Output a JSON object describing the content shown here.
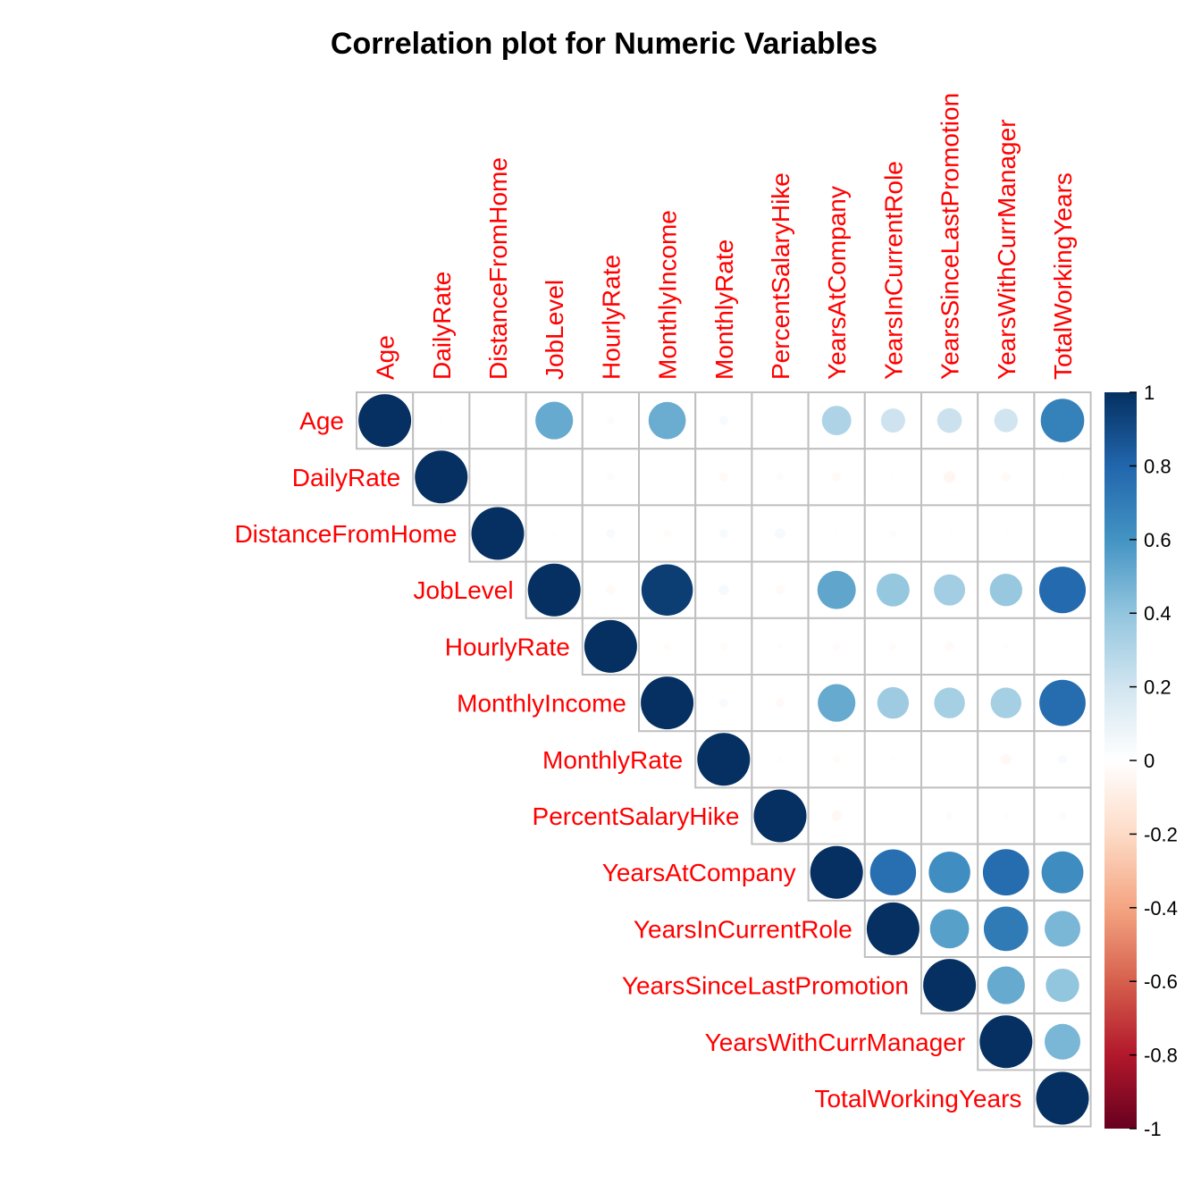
{
  "chart_data": {
    "type": "heatmap",
    "title": "Correlation plot for Numeric Variables",
    "variables": [
      "Age",
      "DailyRate",
      "DistanceFromHome",
      "JobLevel",
      "HourlyRate",
      "MonthlyIncome",
      "MonthlyRate",
      "PercentSalaryHike",
      "YearsAtCompany",
      "YearsInCurrentRole",
      "YearsSinceLastPromotion",
      "YearsWithCurrManager",
      "TotalWorkingYears"
    ],
    "matrix": [
      [
        1.0,
        0.01,
        0.0,
        0.51,
        0.02,
        0.5,
        0.03,
        0.0,
        0.31,
        0.21,
        0.22,
        0.2,
        0.68
      ],
      [
        0.01,
        1.0,
        -0.0,
        0.0,
        0.02,
        0.0,
        -0.03,
        0.02,
        -0.03,
        0.01,
        -0.05,
        -0.03,
        0.01
      ],
      [
        0.0,
        -0.0,
        1.0,
        0.01,
        0.03,
        -0.02,
        0.03,
        0.04,
        0.01,
        0.02,
        0.01,
        0.01,
        0.0
      ],
      [
        0.51,
        0.0,
        0.01,
        1.0,
        -0.03,
        0.95,
        0.04,
        -0.03,
        0.53,
        0.39,
        0.35,
        0.38,
        0.78
      ],
      [
        0.02,
        0.02,
        0.03,
        -0.03,
        1.0,
        -0.02,
        -0.02,
        -0.01,
        -0.02,
        -0.02,
        -0.03,
        -0.01,
        -0.0
      ],
      [
        0.5,
        0.0,
        -0.02,
        0.95,
        -0.02,
        1.0,
        0.03,
        -0.03,
        0.51,
        0.36,
        0.34,
        0.34,
        0.77
      ],
      [
        0.03,
        -0.03,
        0.03,
        0.04,
        -0.02,
        0.03,
        1.0,
        -0.01,
        -0.02,
        -0.01,
        0.0,
        -0.04,
        0.03
      ],
      [
        0.0,
        0.02,
        0.04,
        -0.03,
        -0.01,
        -0.03,
        -0.01,
        1.0,
        -0.04,
        -0.0,
        -0.02,
        -0.01,
        -0.02
      ],
      [
        0.31,
        -0.03,
        0.01,
        0.53,
        -0.02,
        0.51,
        -0.02,
        -0.04,
        1.0,
        0.76,
        0.62,
        0.77,
        0.63
      ],
      [
        0.21,
        0.01,
        0.02,
        0.39,
        -0.02,
        0.36,
        -0.01,
        -0.0,
        0.76,
        1.0,
        0.55,
        0.71,
        0.46
      ],
      [
        0.22,
        -0.05,
        0.01,
        0.35,
        -0.03,
        0.34,
        0.0,
        -0.02,
        0.62,
        0.55,
        1.0,
        0.51,
        0.4
      ],
      [
        0.2,
        -0.03,
        0.01,
        0.38,
        -0.01,
        0.34,
        -0.04,
        -0.01,
        0.77,
        0.71,
        0.51,
        1.0,
        0.46
      ],
      [
        0.68,
        0.01,
        0.0,
        0.78,
        -0.0,
        0.77,
        0.03,
        -0.02,
        0.63,
        0.46,
        0.4,
        0.46,
        1.0
      ]
    ],
    "layout": "upper-triangle",
    "method": "circle",
    "colorbar": {
      "range": [
        -1,
        1
      ],
      "ticks": [
        1,
        0.8,
        0.6,
        0.4,
        0.2,
        0,
        -0.2,
        -0.4,
        -0.6,
        -0.8,
        -1
      ],
      "tick_labels": [
        "1",
        "0.8",
        "0.6",
        "0.4",
        "0.2",
        "0",
        "-0.2",
        "-0.4",
        "-0.6",
        "-0.8",
        "-1"
      ]
    },
    "colors": {
      "label": "#ff0000",
      "grid": "#c0c0c0",
      "palette": [
        "#67001f",
        "#b2182b",
        "#d6604d",
        "#f4a582",
        "#fddbc7",
        "#ffffff",
        "#d1e5f0",
        "#92c5de",
        "#4393c3",
        "#2166ac",
        "#053061"
      ]
    }
  }
}
